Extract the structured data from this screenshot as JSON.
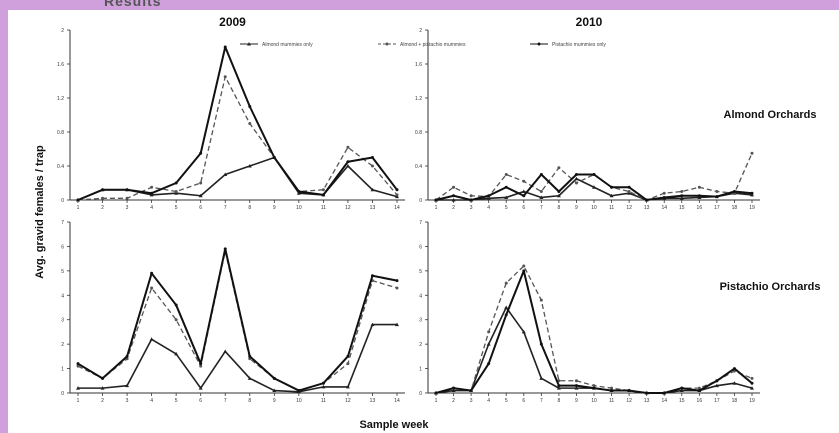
{
  "page_heading": "Results",
  "chart_data": {
    "type": "line",
    "ylabel": "Avg. gravid females / trap",
    "xlabel": "Sample week",
    "legend": [
      "Almond mummies only",
      "Almond + pistachio mummies",
      "Pistachio mummies only"
    ],
    "legend_position": "top",
    "colors": {
      "line": "#222222",
      "dashed": "#555555"
    },
    "panels": [
      {
        "year": "2009",
        "orchard": "",
        "ylim": [
          0,
          2.0
        ],
        "yticks": [
          0,
          0.4,
          0.8,
          1.2,
          1.6,
          2.0
        ],
        "x": [
          1,
          2,
          3,
          4,
          5,
          6,
          7,
          8,
          9,
          10,
          11,
          12,
          13,
          14
        ],
        "series": [
          {
            "name": "Almond mummies only",
            "values": [
              0,
              0.12,
              0.12,
              0.06,
              0.08,
              0.05,
              0.3,
              0.4,
              0.5,
              0.08,
              0.06,
              0.4,
              0.12,
              0.04
            ]
          },
          {
            "name": "Almond + pistachio mummies",
            "values": [
              0,
              0.02,
              0.02,
              0.15,
              0.1,
              0.2,
              1.45,
              0.9,
              0.5,
              0.1,
              0.12,
              0.62,
              0.4,
              0.06
            ]
          },
          {
            "name": "Pistachio mummies only",
            "values": [
              0,
              0.12,
              0.12,
              0.08,
              0.2,
              0.55,
              1.8,
              1.1,
              0.5,
              0.1,
              0.06,
              0.45,
              0.5,
              0.12
            ]
          }
        ]
      },
      {
        "year": "2010",
        "orchard": "Almond Orchards",
        "ylim": [
          0,
          2.0
        ],
        "yticks": [
          0,
          0.4,
          0.8,
          1.2,
          1.6,
          2.0
        ],
        "x": [
          1,
          2,
          3,
          4,
          5,
          6,
          7,
          8,
          9,
          10,
          11,
          12,
          13,
          14,
          15,
          16,
          17,
          18,
          19
        ],
        "series": [
          {
            "name": "Almond mummies only",
            "values": [
              0,
              0,
              0,
              0.02,
              0.03,
              0.1,
              0.03,
              0.05,
              0.25,
              0.15,
              0.05,
              0.08,
              0,
              0.02,
              0.02,
              0.03,
              0.04,
              0.08,
              0.06
            ]
          },
          {
            "name": "Almond + pistachio mummies",
            "values": [
              0,
              0.15,
              0.05,
              0.04,
              0.3,
              0.22,
              0.1,
              0.38,
              0.2,
              0.3,
              0.15,
              0.1,
              0,
              0.08,
              0.1,
              0.15,
              0.1,
              0.08,
              0.55
            ]
          },
          {
            "name": "Pistachio mummies only",
            "values": [
              0,
              0.05,
              0,
              0.05,
              0.15,
              0.05,
              0.3,
              0.1,
              0.3,
              0.3,
              0.15,
              0.15,
              0,
              0.03,
              0.05,
              0.05,
              0.04,
              0.1,
              0.08
            ]
          }
        ]
      },
      {
        "year": "",
        "orchard": "",
        "ylim": [
          0,
          7
        ],
        "yticks": [
          0,
          1,
          2,
          3,
          4,
          5,
          6,
          7
        ],
        "x": [
          1,
          2,
          3,
          4,
          5,
          6,
          7,
          8,
          9,
          10,
          11,
          12,
          13,
          14
        ],
        "series": [
          {
            "name": "Almond mummies only",
            "values": [
              0.2,
              0.2,
              0.3,
              2.2,
              1.6,
              0.2,
              1.7,
              0.6,
              0.1,
              0.05,
              0.25,
              0.25,
              2.8,
              2.8
            ]
          },
          {
            "name": "Almond + pistachio mummies",
            "values": [
              1.1,
              0.6,
              1.4,
              4.3,
              3.0,
              1.1,
              5.8,
              1.4,
              0.6,
              0.1,
              0.4,
              1.2,
              4.6,
              4.3
            ]
          },
          {
            "name": "Pistachio mummies only",
            "values": [
              1.2,
              0.6,
              1.5,
              4.9,
              3.6,
              1.2,
              5.9,
              1.5,
              0.6,
              0.1,
              0.4,
              1.5,
              4.8,
              4.6
            ]
          }
        ]
      },
      {
        "year": "",
        "orchard": "Pistachio Orchards",
        "ylim": [
          0,
          7
        ],
        "yticks": [
          0,
          1,
          2,
          3,
          4,
          5,
          6,
          7
        ],
        "x": [
          1,
          2,
          3,
          4,
          5,
          6,
          7,
          8,
          9,
          10,
          11,
          12,
          13,
          14,
          15,
          16,
          17,
          18,
          19
        ],
        "series": [
          {
            "name": "Almond mummies only",
            "values": [
              0,
              0.1,
              0.1,
              2.0,
              3.5,
              2.5,
              0.6,
              0.2,
              0.2,
              0.2,
              0.1,
              0.1,
              0,
              0,
              0.1,
              0.1,
              0.3,
              0.4,
              0.2
            ]
          },
          {
            "name": "Almond + pistachio mummies",
            "values": [
              0,
              0.2,
              0.1,
              2.5,
              4.5,
              5.2,
              3.8,
              0.5,
              0.5,
              0.3,
              0.2,
              0.1,
              0,
              0,
              0.2,
              0.2,
              0.5,
              0.9,
              0.6
            ]
          },
          {
            "name": "Pistachio mummies only",
            "values": [
              0,
              0.2,
              0.1,
              1.2,
              3.2,
              5.0,
              2.0,
              0.3,
              0.3,
              0.2,
              0.1,
              0.1,
              0,
              0,
              0.2,
              0.1,
              0.5,
              1.0,
              0.4
            ]
          }
        ]
      }
    ]
  }
}
